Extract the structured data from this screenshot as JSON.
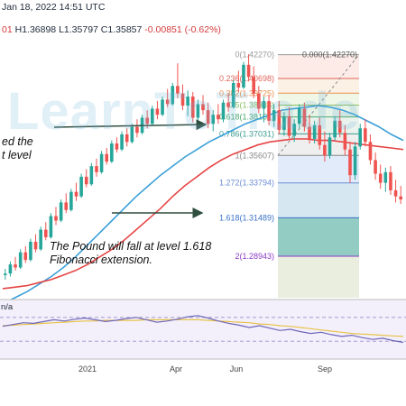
{
  "header": {
    "line1": "Jan 18, 2022 14:51 UTC",
    "open_fragment": "01",
    "high": "H1.36898",
    "low": "L1.35797",
    "close": "C1.35857",
    "change": "-0.00851 (-0.62%)"
  },
  "watermark": "LearnToTrade",
  "notes": {
    "left_line1": "ed the",
    "left_line2": "t level",
    "fall_line1": "The Pound will fall at level 1.618",
    "fall_line2": "Fibonacci extension."
  },
  "rsi_label": "n/a",
  "x_axis": [
    "2021",
    "Apr",
    "Jun",
    "Sep"
  ],
  "colors": {
    "up": "#26a69a",
    "down": "#ef5350",
    "ma_fast": "#3ba0d8",
    "ma_slow": "#e64545",
    "rsi": "#6f66b8",
    "rsi_ma": "#e8c24a",
    "annotation_arrow": "#2f4f3f"
  },
  "chart_data": {
    "type": "candlestick",
    "symbol_period": "daily",
    "ylim": [
      1.262,
      1.432
    ],
    "fibonacci": {
      "top_label": "0.000(1.42270)",
      "levels": [
        {
          "ratio": "0",
          "price": 1.4227,
          "label": "0(1.42270)"
        },
        {
          "ratio": "0.236",
          "price": 1.40698,
          "label": "0.236(1.40698)"
        },
        {
          "ratio": "0.382",
          "price": 1.39725,
          "label": "0.382(1.39725)"
        },
        {
          "ratio": "0.5",
          "price": 1.38938,
          "label": "0.5(1.38938)"
        },
        {
          "ratio": "0.618",
          "price": 1.38151,
          "label": "0.618(1.38151)"
        },
        {
          "ratio": "0.786",
          "price": 1.37031,
          "label": "0.786(1.37031)"
        },
        {
          "ratio": "1",
          "price": 1.35607,
          "label": "1(1.35607)"
        },
        {
          "ratio": "1.272",
          "price": 1.33794,
          "label": "1.272(1.33794)"
        },
        {
          "ratio": "1.618",
          "price": 1.31489,
          "label": "1.618(1.31489)"
        },
        {
          "ratio": "2",
          "price": 1.28943,
          "label": "2(1.28943)"
        }
      ]
    },
    "candles": [
      [
        1.277,
        1.281,
        1.274,
        1.278
      ],
      [
        1.278,
        1.286,
        1.276,
        1.284
      ],
      [
        1.284,
        1.289,
        1.28,
        1.282
      ],
      [
        1.282,
        1.294,
        1.281,
        1.292
      ],
      [
        1.292,
        1.296,
        1.285,
        1.287
      ],
      [
        1.287,
        1.301,
        1.286,
        1.299
      ],
      [
        1.299,
        1.304,
        1.292,
        1.294
      ],
      [
        1.294,
        1.309,
        1.293,
        1.307
      ],
      [
        1.307,
        1.312,
        1.3,
        1.302
      ],
      [
        1.302,
        1.318,
        1.301,
        1.316
      ],
      [
        1.316,
        1.322,
        1.31,
        1.313
      ],
      [
        1.313,
        1.327,
        1.312,
        1.325
      ],
      [
        1.325,
        1.331,
        1.318,
        1.32
      ],
      [
        1.32,
        1.334,
        1.319,
        1.332
      ],
      [
        1.332,
        1.338,
        1.326,
        1.329
      ],
      [
        1.329,
        1.344,
        1.328,
        1.342
      ],
      [
        1.342,
        1.347,
        1.335,
        1.337
      ],
      [
        1.337,
        1.351,
        1.336,
        1.349
      ],
      [
        1.349,
        1.354,
        1.342,
        1.345
      ],
      [
        1.345,
        1.359,
        1.344,
        1.357
      ],
      [
        1.357,
        1.361,
        1.35,
        1.352
      ],
      [
        1.352,
        1.366,
        1.351,
        1.364
      ],
      [
        1.364,
        1.368,
        1.358,
        1.36
      ],
      [
        1.36,
        1.372,
        1.359,
        1.37
      ],
      [
        1.37,
        1.374,
        1.362,
        1.365
      ],
      [
        1.365,
        1.377,
        1.364,
        1.375
      ],
      [
        1.375,
        1.38,
        1.368,
        1.371
      ],
      [
        1.371,
        1.383,
        1.37,
        1.381
      ],
      [
        1.381,
        1.386,
        1.374,
        1.377
      ],
      [
        1.377,
        1.389,
        1.376,
        1.387
      ],
      [
        1.387,
        1.392,
        1.38,
        1.383
      ],
      [
        1.383,
        1.395,
        1.382,
        1.393
      ],
      [
        1.393,
        1.4,
        1.388,
        1.39
      ],
      [
        1.39,
        1.404,
        1.389,
        1.402
      ],
      [
        1.402,
        1.417,
        1.394,
        1.397
      ],
      [
        1.397,
        1.403,
        1.386,
        1.389
      ],
      [
        1.389,
        1.399,
        1.382,
        1.395
      ],
      [
        1.395,
        1.398,
        1.378,
        1.381
      ],
      [
        1.381,
        1.393,
        1.376,
        1.39
      ],
      [
        1.39,
        1.396,
        1.383,
        1.386
      ],
      [
        1.386,
        1.391,
        1.374,
        1.377
      ],
      [
        1.377,
        1.386,
        1.372,
        1.383
      ],
      [
        1.383,
        1.39,
        1.377,
        1.38
      ],
      [
        1.38,
        1.393,
        1.378,
        1.391
      ],
      [
        1.391,
        1.397,
        1.385,
        1.388
      ],
      [
        1.388,
        1.406,
        1.387,
        1.404
      ],
      [
        1.404,
        1.412,
        1.398,
        1.401
      ],
      [
        1.401,
        1.418,
        1.4,
        1.416
      ],
      [
        1.416,
        1.423,
        1.405,
        1.408
      ],
      [
        1.408,
        1.415,
        1.394,
        1.397
      ],
      [
        1.397,
        1.402,
        1.384,
        1.387
      ],
      [
        1.387,
        1.395,
        1.378,
        1.392
      ],
      [
        1.392,
        1.396,
        1.376,
        1.379
      ],
      [
        1.379,
        1.39,
        1.375,
        1.386
      ],
      [
        1.386,
        1.392,
        1.37,
        1.373
      ],
      [
        1.373,
        1.385,
        1.369,
        1.382
      ],
      [
        1.382,
        1.388,
        1.366,
        1.369
      ],
      [
        1.369,
        1.38,
        1.365,
        1.377
      ],
      [
        1.377,
        1.39,
        1.374,
        1.387
      ],
      [
        1.387,
        1.391,
        1.372,
        1.375
      ],
      [
        1.375,
        1.383,
        1.364,
        1.367
      ],
      [
        1.367,
        1.379,
        1.364,
        1.376
      ],
      [
        1.376,
        1.381,
        1.36,
        1.363
      ],
      [
        1.363,
        1.372,
        1.352,
        1.356
      ],
      [
        1.356,
        1.371,
        1.354,
        1.368
      ],
      [
        1.368,
        1.382,
        1.366,
        1.379
      ],
      [
        1.379,
        1.386,
        1.368,
        1.371
      ],
      [
        1.371,
        1.376,
        1.356,
        1.36
      ],
      [
        1.36,
        1.365,
        1.338,
        1.343
      ],
      [
        1.343,
        1.365,
        1.34,
        1.362
      ],
      [
        1.362,
        1.377,
        1.36,
        1.374
      ],
      [
        1.374,
        1.38,
        1.362,
        1.365
      ],
      [
        1.365,
        1.37,
        1.35,
        1.353
      ],
      [
        1.353,
        1.358,
        1.34,
        1.344
      ],
      [
        1.344,
        1.35,
        1.334,
        1.338
      ],
      [
        1.338,
        1.348,
        1.332,
        1.345
      ],
      [
        1.345,
        1.349,
        1.33,
        1.333
      ],
      [
        1.333,
        1.34,
        1.325,
        1.329
      ],
      [
        1.329,
        1.336,
        1.324,
        1.327
      ]
    ],
    "ma_fast_values": [
      1.258,
      1.262,
      1.266,
      1.271,
      1.276,
      1.282,
      1.289,
      1.297,
      1.305,
      1.313,
      1.321,
      1.329,
      1.336,
      1.343,
      1.349,
      1.355,
      1.36,
      1.365,
      1.369,
      1.373,
      1.377,
      1.38,
      1.383,
      1.386,
      1.387,
      1.388,
      1.389,
      1.388,
      1.386,
      1.383,
      1.379,
      1.375,
      1.37,
      1.366
    ],
    "ma_slow_values": [
      1.268,
      1.269,
      1.27,
      1.272,
      1.274,
      1.277,
      1.28,
      1.284,
      1.289,
      1.294,
      1.3,
      1.307,
      1.314,
      1.321,
      1.329,
      1.336,
      1.342,
      1.348,
      1.353,
      1.357,
      1.36,
      1.363,
      1.365,
      1.366,
      1.367,
      1.367,
      1.366,
      1.366,
      1.365,
      1.364,
      1.363,
      1.362,
      1.361,
      1.36
    ],
    "rsi_values": [
      55,
      58,
      61,
      60,
      63,
      66,
      64,
      67,
      69,
      66,
      63,
      65,
      68,
      70,
      66,
      62,
      64,
      67,
      71,
      73,
      69,
      64,
      60,
      57,
      53,
      56,
      52,
      48,
      50,
      46,
      43,
      45,
      41,
      38,
      40,
      36,
      33,
      35,
      31,
      28
    ],
    "rsi_ma_values": [
      56,
      57,
      58,
      59,
      60,
      61,
      62,
      63,
      64,
      64,
      65,
      65,
      65,
      65,
      66,
      66,
      66,
      66,
      66,
      66,
      65,
      64,
      63,
      62,
      61,
      59,
      58,
      56,
      55,
      53,
      51,
      49,
      47,
      45,
      43,
      42,
      41,
      40,
      39,
      38
    ]
  }
}
